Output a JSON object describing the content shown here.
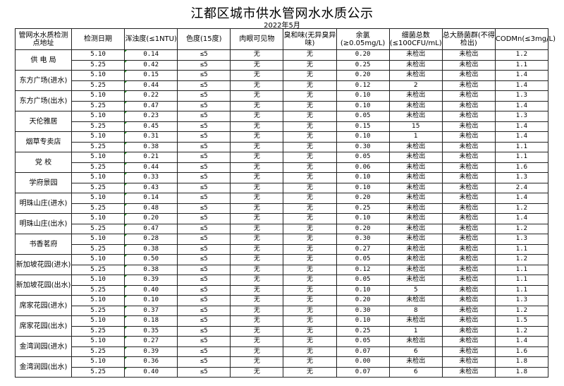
{
  "title": "江都区城市供水管网水水质公示",
  "subtitle": "2022年5月",
  "headers": [
    "管网水水质检测点地址",
    "检测日期",
    "浑浊度(≤1NTU)",
    "色度(15度)",
    "肉眼可见物",
    "臭和味(无异臭异味)",
    "余氯(≥0.05mg/L)",
    "细菌总数(≤100CFU/mL)",
    "总大肠菌群(不得检出)",
    "CODMn(≤3mg/L)"
  ],
  "sites": [
    {
      "name": "供 电 局",
      "rows": [
        [
          "5.10",
          "0.14",
          "≤5",
          "无",
          "无",
          "0.20",
          "未检出",
          "未检出",
          "1.2"
        ],
        [
          "5.25",
          "0.42",
          "≤5",
          "无",
          "无",
          "0.25",
          "未检出",
          "未检出",
          "1.1"
        ]
      ]
    },
    {
      "name": "东方广场(进水)",
      "rows": [
        [
          "5.10",
          "0.15",
          "≤5",
          "无",
          "无",
          "0.20",
          "未检出",
          "未检出",
          "1.4"
        ],
        [
          "5.25",
          "0.44",
          "≤5",
          "无",
          "无",
          "0.12",
          "2",
          "未检出",
          "1.4"
        ]
      ]
    },
    {
      "name": "东方广场(出水)",
      "rows": [
        [
          "5.10",
          "0.22",
          "≤5",
          "无",
          "无",
          "0.10",
          "未检出",
          "未检出",
          "1.3"
        ],
        [
          "5.25",
          "0.47",
          "≤5",
          "无",
          "无",
          "0.10",
          "未检出",
          "未检出",
          "1.4"
        ]
      ]
    },
    {
      "name": "天伦雅居",
      "rows": [
        [
          "5.10",
          "0.23",
          "≤5",
          "无",
          "无",
          "0.05",
          "未检出",
          "未检出",
          "1.3"
        ],
        [
          "5.25",
          "0.45",
          "≤5",
          "无",
          "无",
          "0.15",
          "15",
          "未检出",
          "1.4"
        ]
      ]
    },
    {
      "name": "烟草专卖店",
      "rows": [
        [
          "5.10",
          "0.31",
          "≤5",
          "无",
          "无",
          "0.10",
          "1",
          "未检出",
          "1.4"
        ],
        [
          "5.25",
          "0.38",
          "≤5",
          "无",
          "无",
          "0.30",
          "未检出",
          "未检出",
          "1.1"
        ]
      ]
    },
    {
      "name": "党  校",
      "rows": [
        [
          "5.10",
          "0.21",
          "≤5",
          "无",
          "无",
          "0.05",
          "未检出",
          "未检出",
          "1.1"
        ],
        [
          "5.25",
          "0.44",
          "≤5",
          "无",
          "无",
          "0.06",
          "未检出",
          "未检出",
          "1.6"
        ]
      ]
    },
    {
      "name": "学府景园",
      "rows": [
        [
          "5.10",
          "0.33",
          "≤5",
          "无",
          "无",
          "0.10",
          "未检出",
          "未检出",
          "1.3"
        ],
        [
          "5.25",
          "0.43",
          "≤5",
          "无",
          "无",
          "0.10",
          "未检出",
          "未检出",
          "2.4"
        ]
      ]
    },
    {
      "name": "明珠山庄(进水)",
      "rows": [
        [
          "5.10",
          "0.14",
          "≤5",
          "无",
          "无",
          "0.20",
          "未检出",
          "未检出",
          "1.4"
        ],
        [
          "5.25",
          "0.48",
          "≤5",
          "无",
          "无",
          "0.25",
          "未检出",
          "未检出",
          "1.2"
        ]
      ]
    },
    {
      "name": "明珠山庄(出水)",
      "rows": [
        [
          "5.10",
          "0.20",
          "≤5",
          "无",
          "无",
          "0.10",
          "未检出",
          "未检出",
          "1.4"
        ],
        [
          "5.25",
          "0.47",
          "≤5",
          "无",
          "无",
          "0.20",
          "未检出",
          "未检出",
          "1.2"
        ]
      ]
    },
    {
      "name": "书香茗府",
      "rows": [
        [
          "5.10",
          "0.28",
          "≤5",
          "无",
          "无",
          "0.30",
          "未检出",
          "未检出",
          "1.3"
        ],
        [
          "5.25",
          "0.38",
          "≤5",
          "无",
          "无",
          "0.27",
          "未检出",
          "未检出",
          "1.1"
        ]
      ]
    },
    {
      "name": "新加坡花园(进水)",
      "rows": [
        [
          "5.10",
          "0.50",
          "≤5",
          "无",
          "无",
          "0.05",
          "未检出",
          "未检出",
          "1.2"
        ],
        [
          "5.25",
          "0.38",
          "≤5",
          "无",
          "无",
          "0.12",
          "未检出",
          "未检出",
          "1.1"
        ]
      ]
    },
    {
      "name": "新加坡花园(出水)",
      "rows": [
        [
          "5.10",
          "0.39",
          "≤5",
          "无",
          "无",
          "0.05",
          "未检出",
          "未检出",
          "1.1"
        ],
        [
          "5.25",
          "0.40",
          "≤5",
          "无",
          "无",
          "0.10",
          "5",
          "未检出",
          "1.1"
        ]
      ]
    },
    {
      "name": "席家花园(进水)",
      "rows": [
        [
          "5.10",
          "0.10",
          "≤5",
          "无",
          "无",
          "0.20",
          "未检出",
          "未检出",
          "1.3"
        ],
        [
          "5.25",
          "0.37",
          "≤5",
          "无",
          "无",
          "0.30",
          "8",
          "未检出",
          "1.2"
        ]
      ]
    },
    {
      "name": "席家花园(出水)",
      "rows": [
        [
          "5.10",
          "0.18",
          "≤5",
          "无",
          "无",
          "0.10",
          "未检出",
          "未检出",
          "1.5"
        ],
        [
          "5.25",
          "0.35",
          "≤5",
          "无",
          "无",
          "0.25",
          "1",
          "未检出",
          "1.2"
        ]
      ]
    },
    {
      "name": "金湾润园(进水)",
      "rows": [
        [
          "5.10",
          "0.27",
          "≤5",
          "无",
          "无",
          "0.05",
          "未检出",
          "未检出",
          "1.4"
        ],
        [
          "5.25",
          "0.39",
          "≤5",
          "无",
          "无",
          "0.07",
          "6",
          "未检出",
          "1.6"
        ]
      ]
    },
    {
      "name": "金湾润园(出水)",
      "rows": [
        [
          "5.10",
          "0.36",
          "≤5",
          "无",
          "无",
          "0.00",
          "未检出",
          "未检出",
          "1.8"
        ],
        [
          "5.25",
          "0.40",
          "≤5",
          "无",
          "无",
          "0.07",
          "6",
          "未检出",
          "1.8"
        ]
      ]
    }
  ]
}
